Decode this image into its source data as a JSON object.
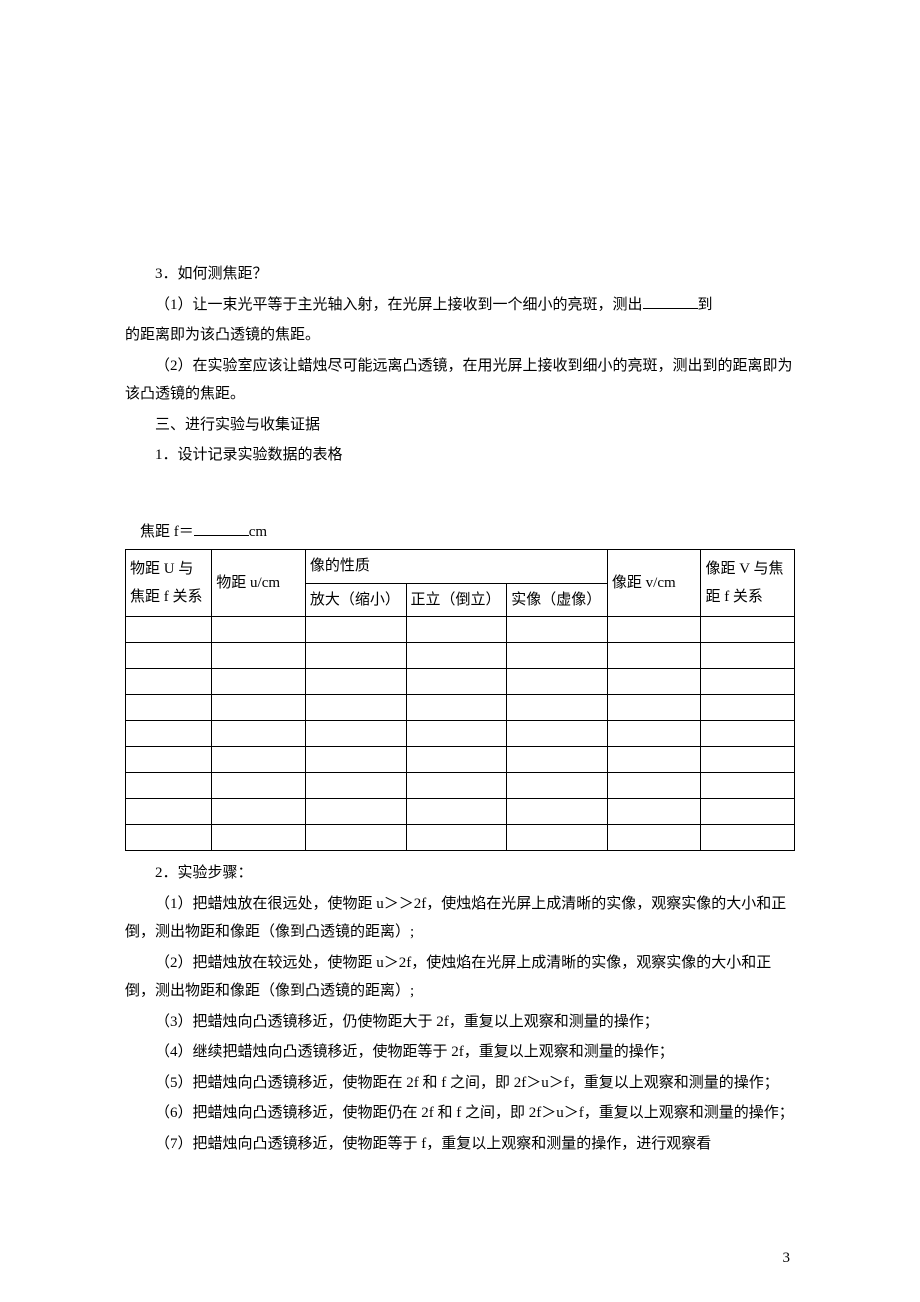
{
  "section3": {
    "title": "3．如何测焦距？",
    "item1_pre": "（1）让一束光平等于主光轴入射，在光屏上接收到一个细小的亮斑，测出",
    "item1_post": "到的距离即为该凸透镜的焦距。",
    "item2": "（2）在实验室应该让蜡烛尽可能远离凸透镜，在用光屏上接收到细小的亮斑，测出到的距离即为该凸透镜的焦距。"
  },
  "section_experiment": {
    "heading": "三、进行实验与收集证据",
    "item1": "1．设计记录实验数据的表格",
    "focal_pre": "焦距 f＝",
    "focal_unit": "cm"
  },
  "table": {
    "columns": [
      "物距 U 与焦距 f 关系",
      "物距 u/cm",
      "像的性质",
      "像距 v/cm",
      "像距 V 与焦距 f 关系"
    ],
    "sub_columns": [
      "放大（缩小）",
      "正立（倒立）",
      "实像（虚像）"
    ],
    "empty_rows": 9,
    "border_color": "#000000",
    "col_widths": [
      "12%",
      "13%",
      "14%",
      "14%",
      "14%",
      "13%",
      "13%"
    ]
  },
  "steps": {
    "title": "2．实验步骤：",
    "s1": "（1）把蜡烛放在很远处，使物距 u＞＞2f，使烛焰在光屏上成清晰的实像，观察实像的大小和正倒，测出物距和像距（像到凸透镜的距离）;",
    "s2": "（2）把蜡烛放在较远处，使物距 u＞2f，使烛焰在光屏上成清晰的实像，观察实像的大小和正倒，测出物距和像距（像到凸透镜的距离）;",
    "s3": "（3）把蜡烛向凸透镜移近，仍使物距大于 2f，重复以上观察和测量的操作；",
    "s4": "（4）继续把蜡烛向凸透镜移近，使物距等于 2f，重复以上观察和测量的操作；",
    "s5": "（5）把蜡烛向凸透镜移近，使物距在 2f 和 f 之间，即 2f＞u＞f，重复以上观察和测量的操作；",
    "s6": "（6）把蜡烛向凸透镜移近，使物距仍在 2f 和 f 之间，即 2f＞u＞f，重复以上观察和测量的操作；",
    "s7": "（7）把蜡烛向凸透镜移近，使物距等于 f，重复以上观察和测量的操作，进行观察看"
  },
  "page_number": "3",
  "style": {
    "font_family": "SimSun",
    "font_size_pt": 11,
    "text_color": "#000000",
    "background": "#ffffff"
  }
}
